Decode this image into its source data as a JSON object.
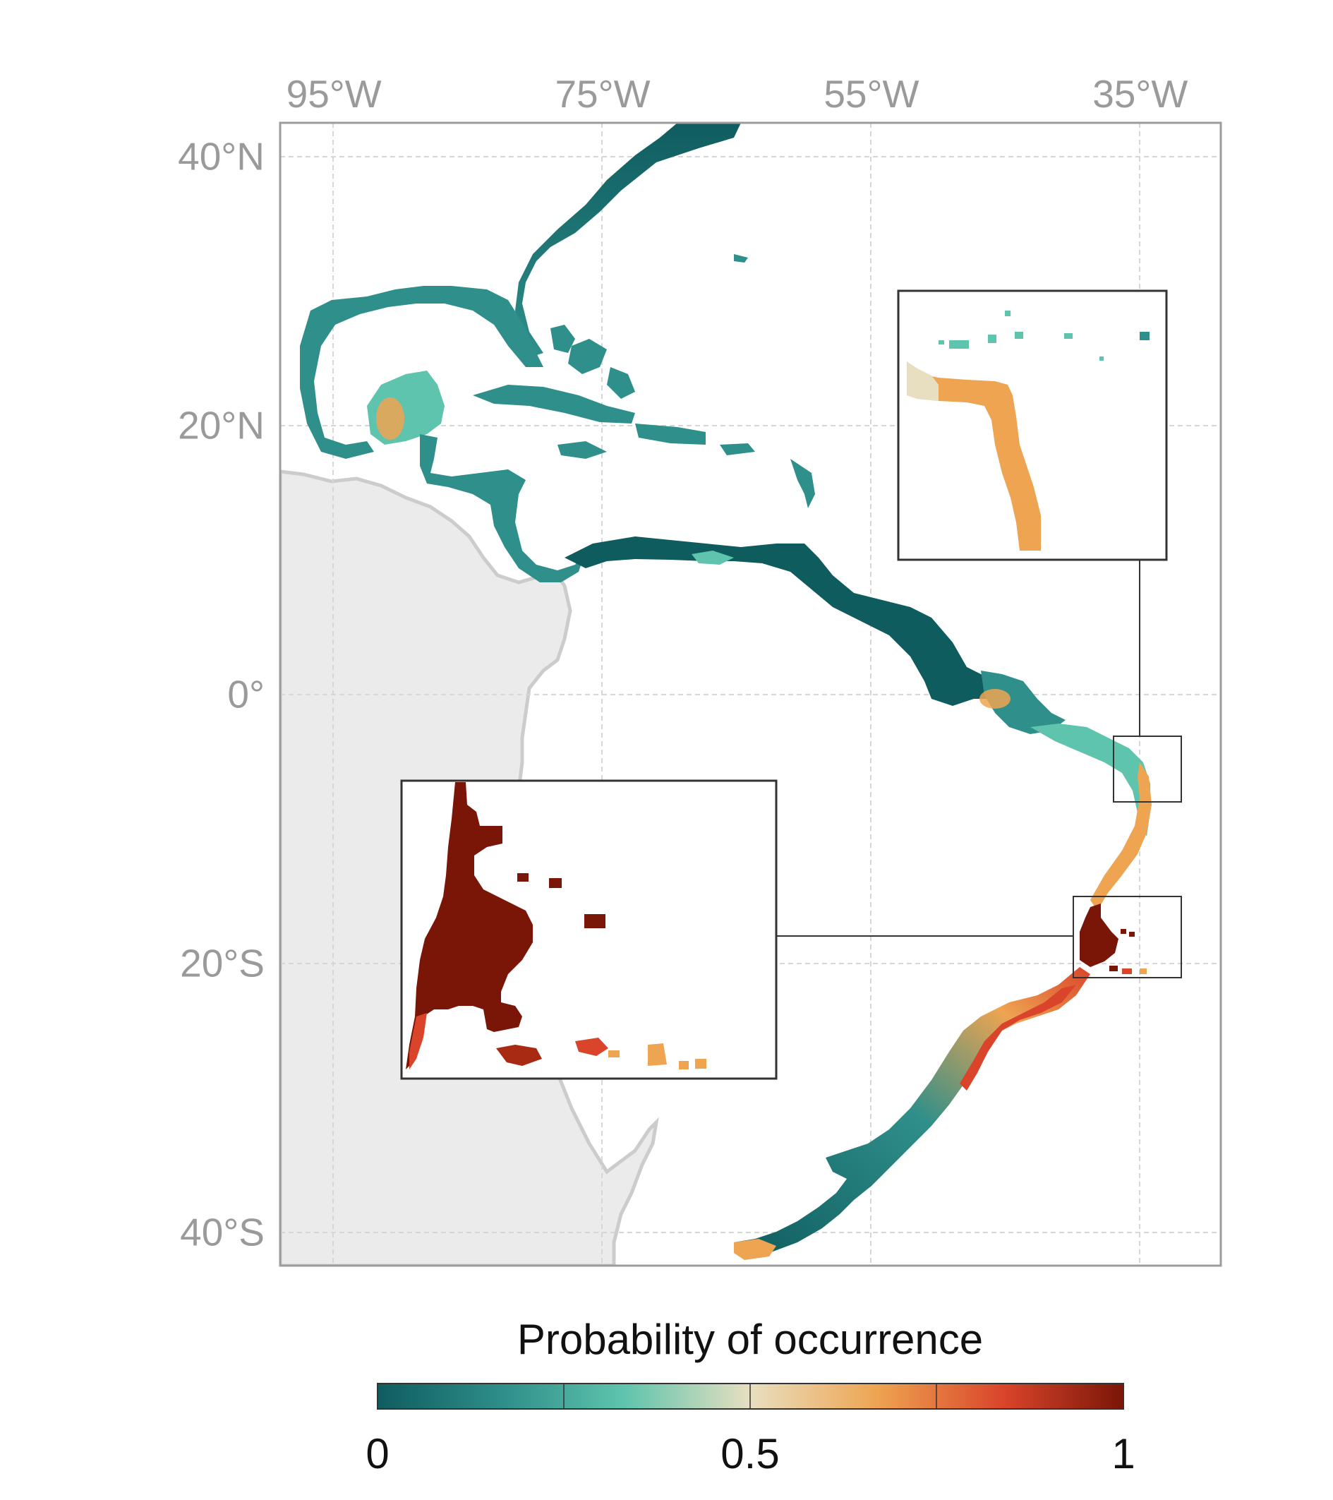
{
  "axes": {
    "lon_ticks": [
      {
        "value": -95,
        "label": "95°W"
      },
      {
        "value": -75,
        "label": "75°W"
      },
      {
        "value": -55,
        "label": "55°W"
      },
      {
        "value": -35,
        "label": "35°W"
      }
    ],
    "lat_ticks": [
      {
        "value": 40,
        "label": "40°N"
      },
      {
        "value": 20,
        "label": "20°N"
      },
      {
        "value": 0,
        "label": "0°"
      },
      {
        "value": -20,
        "label": "20°S"
      },
      {
        "value": -40,
        "label": "40°S"
      }
    ],
    "lon_range": [
      -99,
      -29
    ],
    "lat_range": [
      -42.5,
      42.5
    ],
    "grid": true
  },
  "legend": {
    "title": "Probability of occurrence",
    "min_label": "0",
    "mid_label": "0.5",
    "max_label": "1",
    "colors": [
      "#0f5c5f",
      "#2f8f8a",
      "#5ec4ad",
      "#e8dfc0",
      "#eea451",
      "#d9442a",
      "#7a1608"
    ]
  },
  "colors": {
    "land": "#ebebeb",
    "land_border": "#cccccc",
    "grid": "#d6d6d6",
    "frame": "#9c9c9c"
  },
  "insets": [
    {
      "name": "northeast-brazil-inset",
      "region": "Northeast Brazil coast"
    },
    {
      "name": "abrolhos-inset",
      "region": "Abrolhos Bank"
    }
  ]
}
